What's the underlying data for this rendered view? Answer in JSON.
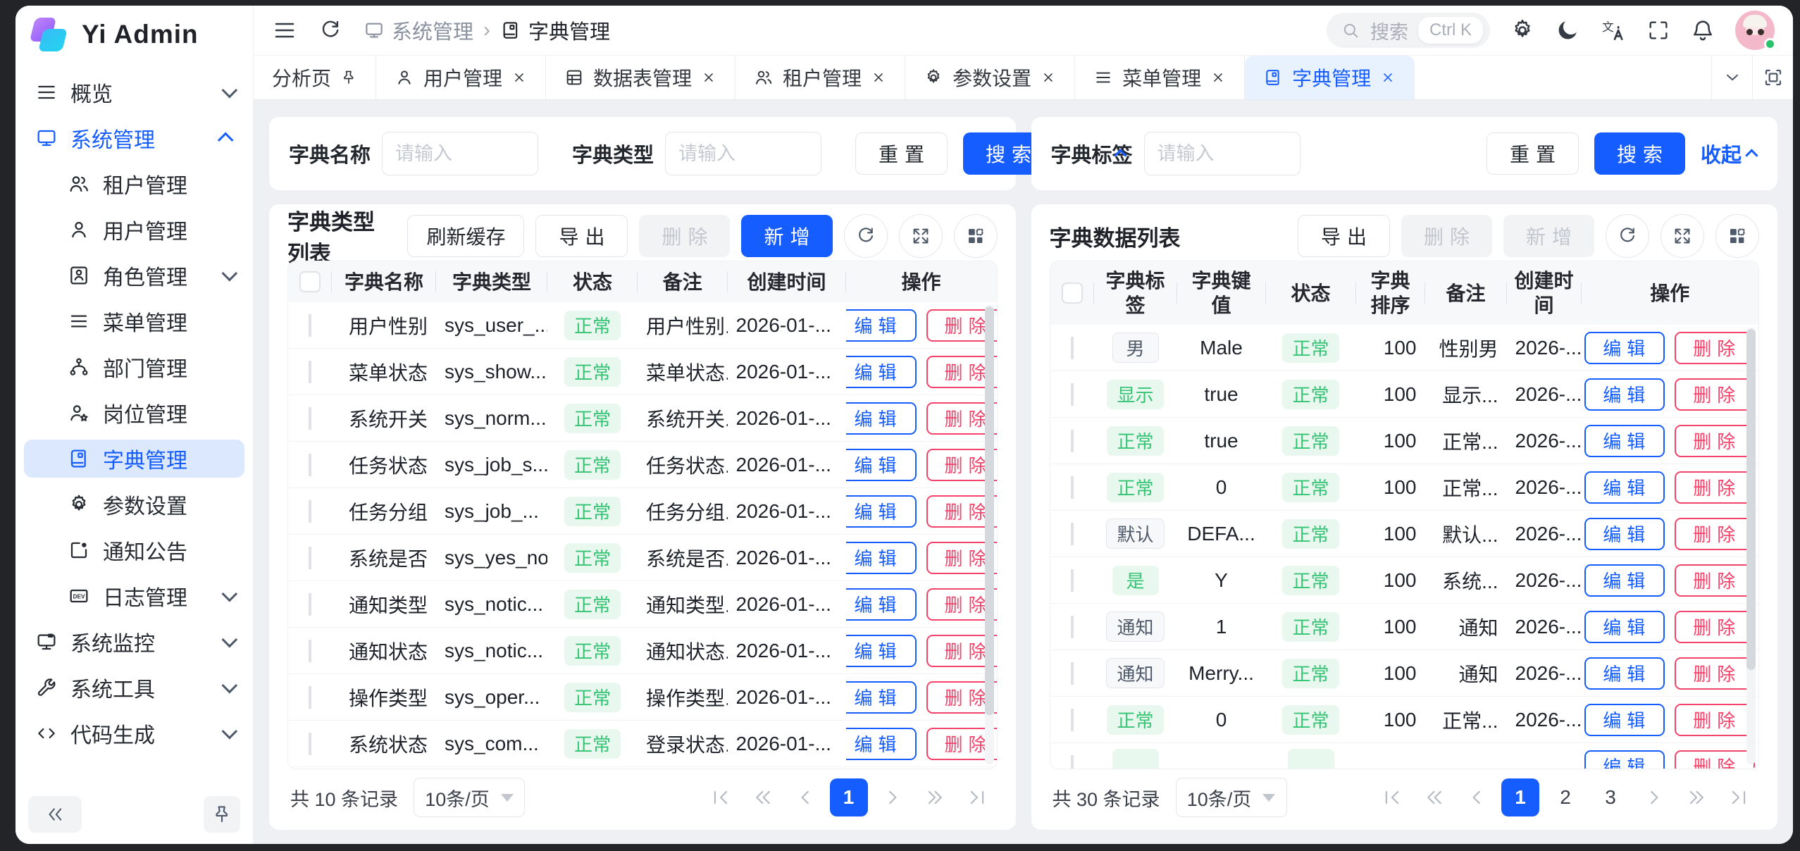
{
  "app": {
    "title": "Yi Admin"
  },
  "sidebar": {
    "items": [
      {
        "label": "概览",
        "icon": "menu-icon",
        "chevron": "down",
        "level": 1
      },
      {
        "label": "系统管理",
        "icon": "monitor-icon",
        "chevron": "up",
        "level": 1,
        "active": "text"
      },
      {
        "label": "租户管理",
        "icon": "people-icon",
        "level": 2
      },
      {
        "label": "用户管理",
        "icon": "user-icon",
        "level": 2
      },
      {
        "label": "角色管理",
        "icon": "role-icon",
        "chevron": "down",
        "level": 2
      },
      {
        "label": "菜单管理",
        "icon": "list-icon",
        "level": 2
      },
      {
        "label": "部门管理",
        "icon": "tree-icon",
        "level": 2
      },
      {
        "label": "岗位管理",
        "icon": "user-star-icon",
        "level": 2
      },
      {
        "label": "字典管理",
        "icon": "book-icon",
        "level": 2,
        "active": "bg"
      },
      {
        "label": "参数设置",
        "icon": "gear-icon",
        "level": 2
      },
      {
        "label": "通知公告",
        "icon": "notice-icon",
        "level": 2
      },
      {
        "label": "日志管理",
        "icon": "dev-icon",
        "chevron": "down",
        "level": 2
      },
      {
        "label": "系统监控",
        "icon": "monitor2-icon",
        "chevron": "down",
        "level": 1
      },
      {
        "label": "系统工具",
        "icon": "wrench-icon",
        "chevron": "down",
        "level": 1
      },
      {
        "label": "代码生成",
        "icon": "code-icon",
        "chevron": "down",
        "level": 1
      }
    ]
  },
  "topbar": {
    "breadcrumb": [
      {
        "label": "系统管理",
        "icon": "monitor-icon"
      },
      {
        "label": "字典管理",
        "icon": "book-icon"
      }
    ],
    "search_placeholder": "搜索",
    "shortcut": "Ctrl K"
  },
  "tabs": [
    {
      "label": "分析页",
      "pin": true
    },
    {
      "label": "用户管理",
      "icon": "user-icon",
      "closable": true
    },
    {
      "label": "数据表管理",
      "icon": "table-icon",
      "closable": true
    },
    {
      "label": "租户管理",
      "icon": "people-icon",
      "closable": true
    },
    {
      "label": "参数设置",
      "icon": "gear-icon",
      "closable": true
    },
    {
      "label": "菜单管理",
      "icon": "list-icon",
      "closable": true
    },
    {
      "label": "字典管理",
      "icon": "book-icon",
      "closable": true,
      "active": true
    }
  ],
  "left": {
    "filters": [
      {
        "label": "字典名称",
        "placeholder": "请输入"
      },
      {
        "label": "字典类型",
        "placeholder": "请输入"
      }
    ],
    "reset_label": "重置",
    "search_label": "搜索",
    "collapse_label": "收起",
    "table": {
      "title": "字典类型列表",
      "toolbar": [
        {
          "label": "刷新缓存",
          "variant": "outline",
          "two": false
        },
        {
          "label": "导出",
          "variant": "outline",
          "two": true
        },
        {
          "label": "删除",
          "variant": "disabled",
          "two": true
        },
        {
          "label": "新增",
          "variant": "primary",
          "two": true
        }
      ],
      "columns": [
        "字典名称",
        "字典类型",
        "状态",
        "备注",
        "创建时间",
        "操作"
      ],
      "edit_label": "编辑",
      "delete_label": "删除",
      "rows": [
        {
          "name": "用户性别",
          "type": "sys_user_...",
          "status": "正常",
          "remark": "用户性别...",
          "created": "2026-01-..."
        },
        {
          "name": "菜单状态",
          "type": "sys_show...",
          "status": "正常",
          "remark": "菜单状态...",
          "created": "2026-01-..."
        },
        {
          "name": "系统开关",
          "type": "sys_norm...",
          "status": "正常",
          "remark": "系统开关...",
          "created": "2026-01-..."
        },
        {
          "name": "任务状态",
          "type": "sys_job_s...",
          "status": "正常",
          "remark": "任务状态...",
          "created": "2026-01-..."
        },
        {
          "name": "任务分组",
          "type": "sys_job_...",
          "status": "正常",
          "remark": "任务分组...",
          "created": "2026-01-..."
        },
        {
          "name": "系统是否",
          "type": "sys_yes_no",
          "status": "正常",
          "remark": "系统是否...",
          "created": "2026-01-..."
        },
        {
          "name": "通知类型",
          "type": "sys_notic...",
          "status": "正常",
          "remark": "通知类型...",
          "created": "2026-01-..."
        },
        {
          "name": "通知状态",
          "type": "sys_notic...",
          "status": "正常",
          "remark": "通知状态...",
          "created": "2026-01-..."
        },
        {
          "name": "操作类型",
          "type": "sys_oper...",
          "status": "正常",
          "remark": "操作类型...",
          "created": "2026-01-..."
        },
        {
          "name": "系统状态",
          "type": "sys_com...",
          "status": "正常",
          "remark": "登录状态...",
          "created": "2026-01-..."
        }
      ]
    },
    "pagination": {
      "total": "共 10 条记录",
      "page_size": "10条/页",
      "pages": [
        "1"
      ],
      "active": "1"
    }
  },
  "right": {
    "filters": [
      {
        "label": "字典标签",
        "placeholder": "请输入"
      }
    ],
    "reset_label": "重置",
    "search_label": "搜索",
    "collapse_label": "收起",
    "table": {
      "title": "字典数据列表",
      "toolbar": [
        {
          "label": "导出",
          "variant": "outline",
          "two": true
        },
        {
          "label": "删除",
          "variant": "disabled",
          "two": true
        },
        {
          "label": "新增",
          "variant": "disabled",
          "two": true
        }
      ],
      "columns": [
        "字典标签",
        "字典键值",
        "状态",
        "字典排序",
        "备注",
        "创建时间",
        "操作"
      ],
      "edit_label": "编辑",
      "delete_label": "删除",
      "rows": [
        {
          "label": "男",
          "label_variant": "grey",
          "key": "Male",
          "status": "正常",
          "sort": "100",
          "remark": "性别男",
          "created": "2026-..."
        },
        {
          "label": "显示",
          "label_variant": "green",
          "key": "true",
          "status": "正常",
          "sort": "100",
          "remark": "显示...",
          "created": "2026-..."
        },
        {
          "label": "正常",
          "label_variant": "green",
          "key": "true",
          "status": "正常",
          "sort": "100",
          "remark": "正常...",
          "created": "2026-..."
        },
        {
          "label": "正常",
          "label_variant": "green",
          "key": "0",
          "status": "正常",
          "sort": "100",
          "remark": "正常...",
          "created": "2026-..."
        },
        {
          "label": "默认",
          "label_variant": "grey",
          "key": "DEFA...",
          "status": "正常",
          "sort": "100",
          "remark": "默认...",
          "created": "2026-..."
        },
        {
          "label": "是",
          "label_variant": "green",
          "key": "Y",
          "status": "正常",
          "sort": "100",
          "remark": "系统...",
          "created": "2026-..."
        },
        {
          "label": "通知",
          "label_variant": "grey",
          "key": "1",
          "status": "正常",
          "sort": "100",
          "remark": "通知",
          "created": "2026-..."
        },
        {
          "label": "通知",
          "label_variant": "grey",
          "key": "Merry...",
          "status": "正常",
          "sort": "100",
          "remark": "通知",
          "created": "2026-..."
        },
        {
          "label": "正常",
          "label_variant": "green",
          "key": "0",
          "status": "正常",
          "sort": "100",
          "remark": "正常...",
          "created": "2026-..."
        },
        {
          "label": "",
          "label_variant": "green",
          "key": "",
          "status": "",
          "sort": "",
          "remark": "",
          "created": "",
          "partial": true
        }
      ]
    },
    "pagination": {
      "total": "共 30 条记录",
      "page_size": "10条/页",
      "pages": [
        "1",
        "2",
        "3"
      ],
      "active": "1"
    }
  }
}
